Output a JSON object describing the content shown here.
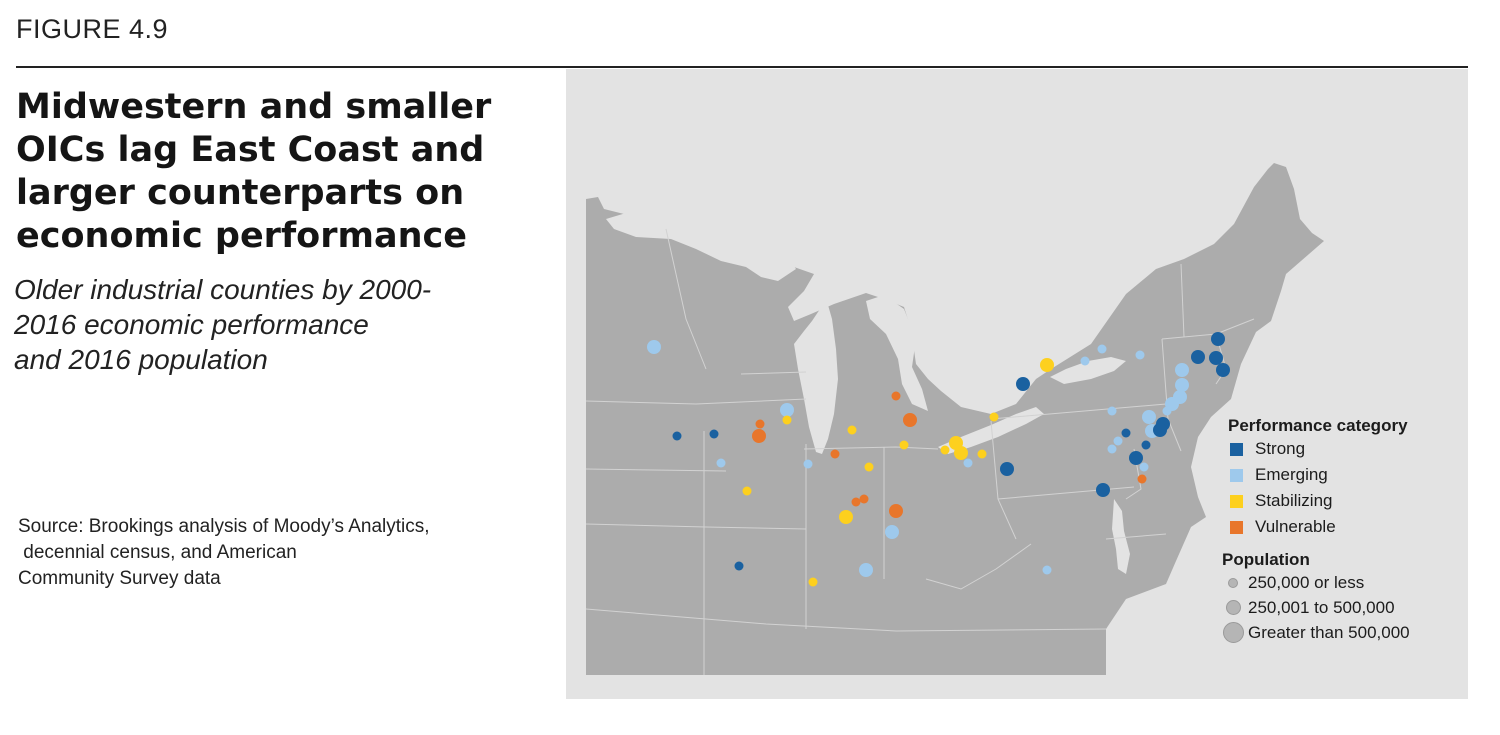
{
  "figure_label": "FIGURE 4.9",
  "title": "Midwestern and smaller OICs lag East Coast and larger counterparts on economic performance",
  "subtitle_lines": [
    "Older industrial counties by 2000-",
    "2016 economic performance",
    "and 2016 population"
  ],
  "source_lines": [
    "Source: Brookings analysis of Moody’s Analytics,",
    " decennial census, and American",
    "Community Survey data"
  ],
  "legend": {
    "performance_heading": "Performance category",
    "categories": [
      {
        "key": "strong",
        "label": "Strong",
        "color": "#1a61a0"
      },
      {
        "key": "emerging",
        "label": "Emerging",
        "color": "#9ec9ec"
      },
      {
        "key": "stabilizing",
        "label": "Stabilizing",
        "color": "#fdd01e"
      },
      {
        "key": "vulnerable",
        "label": "Vulnerable",
        "color": "#e8762b"
      }
    ],
    "population_heading": "Population",
    "population_classes": [
      {
        "key": "small",
        "label": "250,000 or less"
      },
      {
        "key": "medium",
        "label": "250,001 to 500,000"
      },
      {
        "key": "large",
        "label": "Greater than 500,000"
      }
    ]
  },
  "colors": {
    "map_background": "#e3e3e3",
    "land": "#acacac",
    "water": "#e3e3e3",
    "borders": "#d6d6d6"
  }
}
